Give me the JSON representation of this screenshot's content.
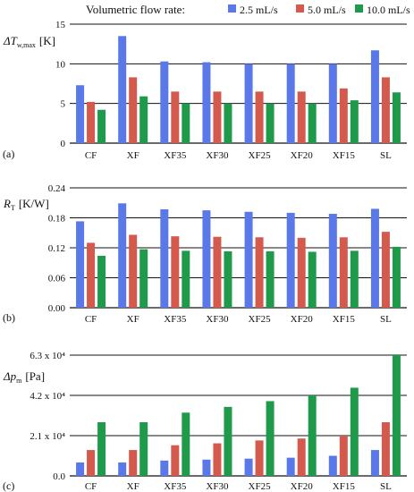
{
  "legend": {
    "title": "Volumetric flow rate:",
    "items": [
      {
        "label": "2.5 mL/s",
        "color": "#5b78e8"
      },
      {
        "label": "5.0 mL/s",
        "color": "#d45a4e"
      },
      {
        "label": "10.0 mL/s",
        "color": "#1f9a4a"
      }
    ]
  },
  "chart_data": [
    {
      "type": "bar",
      "panel": "(a)",
      "ylabel_main": "ΔT",
      "ylabel_sub": "w,max",
      "ylabel_unit": "[K]",
      "categories": [
        "CF",
        "XF",
        "XF35",
        "XF30",
        "XF25",
        "XF20",
        "XF15",
        "SL"
      ],
      "highlight_category": "XF",
      "highlight_color": "#d62020",
      "ylim": [
        0,
        15
      ],
      "yticks": [
        0,
        5,
        10,
        15
      ],
      "ytick_labels": [
        "0",
        "5",
        "10",
        "15"
      ],
      "series": [
        {
          "name": "2.5 mL/s",
          "values": [
            7.3,
            13.5,
            10.3,
            10.2,
            10.0,
            10.0,
            10.0,
            11.7
          ]
        },
        {
          "name": "5.0 mL/s",
          "values": [
            5.2,
            8.3,
            6.5,
            6.5,
            6.5,
            6.5,
            6.9,
            8.3
          ]
        },
        {
          "name": "10.0 mL/s",
          "values": [
            4.2,
            5.9,
            5.0,
            5.0,
            5.0,
            5.0,
            5.4,
            6.4
          ]
        }
      ]
    },
    {
      "type": "bar",
      "panel": "(b)",
      "ylabel_main": "R",
      "ylabel_sub": "T",
      "ylabel_unit": "[K/W]",
      "categories": [
        "CF",
        "XF",
        "XF35",
        "XF30",
        "XF25",
        "XF20",
        "XF15",
        "SL"
      ],
      "ylim": [
        0,
        0.24
      ],
      "yticks": [
        0,
        0.06,
        0.12,
        0.18,
        0.24
      ],
      "ytick_labels": [
        "0.00",
        "0.06",
        "0.12",
        "0.18",
        "0.24"
      ],
      "series": [
        {
          "name": "2.5 mL/s",
          "values": [
            0.173,
            0.209,
            0.197,
            0.195,
            0.192,
            0.19,
            0.188,
            0.198
          ]
        },
        {
          "name": "5.0 mL/s",
          "values": [
            0.13,
            0.146,
            0.143,
            0.142,
            0.141,
            0.14,
            0.141,
            0.152
          ]
        },
        {
          "name": "10.0 mL/s",
          "values": [
            0.104,
            0.117,
            0.114,
            0.113,
            0.113,
            0.112,
            0.114,
            0.122
          ]
        }
      ]
    },
    {
      "type": "bar",
      "panel": "(c)",
      "ylabel_main": "Δp",
      "ylabel_sub": "m",
      "ylabel_unit": "[Pa]",
      "categories": [
        "CF",
        "XF",
        "XF35",
        "XF30",
        "XF25",
        "XF20",
        "XF15",
        "SL"
      ],
      "ylim": [
        0,
        63000
      ],
      "yticks": [
        0,
        21000,
        42000,
        63000
      ],
      "ytick_labels": [
        "0.0",
        "2.1 x 10⁴",
        "4.2 x 10⁴",
        "6.3 x 10⁴"
      ],
      "series": [
        {
          "name": "2.5 mL/s",
          "values": [
            7000,
            7000,
            8000,
            8500,
            9000,
            9500,
            10500,
            13500
          ]
        },
        {
          "name": "5.0 mL/s",
          "values": [
            13500,
            13500,
            16000,
            17000,
            18500,
            19500,
            21000,
            28000
          ]
        },
        {
          "name": "10.0 mL/s",
          "values": [
            28000,
            28000,
            33000,
            36000,
            39000,
            42000,
            46000,
            63000
          ]
        }
      ]
    }
  ]
}
